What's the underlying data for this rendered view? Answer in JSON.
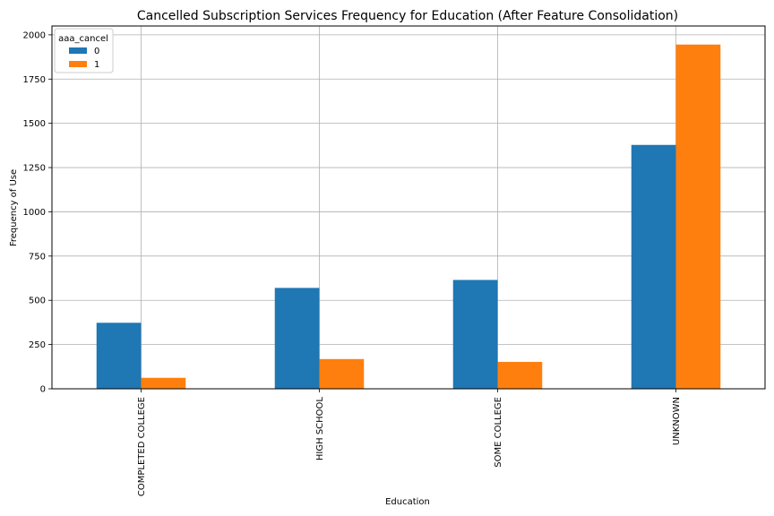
{
  "chart_data": {
    "type": "bar",
    "title": "Cancelled Subscription Services Frequency for Education  (After Feature Consolidation)",
    "xlabel": "Education",
    "ylabel": "Frequency of Use",
    "categories": [
      "COMPLETED COLLEGE",
      "HIGH SCHOOL",
      "SOME COLLEGE",
      "UNKNOWN"
    ],
    "series": [
      {
        "name": "0",
        "color": "#1f77b4",
        "values": [
          373,
          570,
          615,
          1378
        ]
      },
      {
        "name": "1",
        "color": "#ff7f0e",
        "values": [
          62,
          168,
          152,
          1945
        ]
      }
    ],
    "ylim": [
      0,
      2050
    ],
    "yticks": [
      0,
      250,
      500,
      750,
      1000,
      1250,
      1500,
      1750,
      2000
    ],
    "grid": true,
    "legend": {
      "title": "aaa_cancel",
      "placement": "top-left"
    }
  }
}
